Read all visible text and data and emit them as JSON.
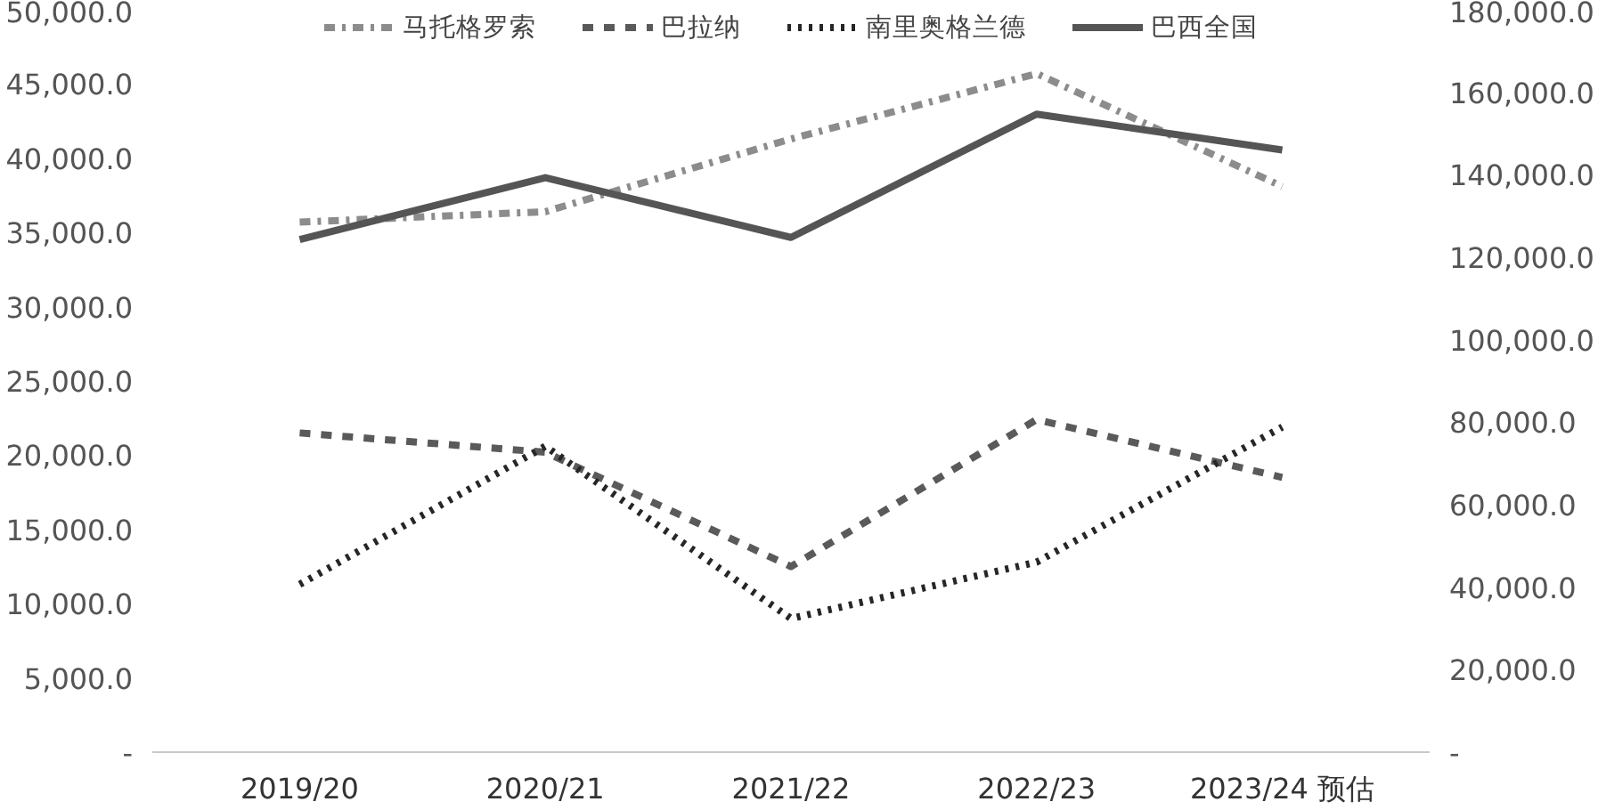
{
  "chart_data": {
    "type": "line",
    "categories": [
      "2019/20",
      "2020/21",
      "2021/22",
      "2022/23",
      "2023/24 预估"
    ],
    "series": [
      {
        "name": "马托格罗索",
        "color": "#8c8c8c",
        "line_style": "dashdot",
        "values": [
          35700,
          36400,
          41300,
          45700,
          38100
        ]
      },
      {
        "name": "巴拉纳",
        "color": "#5a5a5a",
        "line_style": "dashed",
        "values": [
          21500,
          20200,
          12500,
          22400,
          18500
        ]
      },
      {
        "name": "南里奥格兰德",
        "color": "#262626",
        "line_style": "dotted",
        "values": [
          11300,
          20600,
          9000,
          12800,
          21900
        ]
      },
      {
        "name": "巴西全国",
        "color": "#555555",
        "line_style": "solid",
        "axis": "y2",
        "values": [
          124300,
          139300,
          124800,
          154700,
          146000
        ]
      }
    ],
    "ylim": [
      0,
      50000
    ],
    "yticks": [
      {
        "value": 0,
        "label": "-"
      },
      {
        "value": 5000,
        "label": "5,000.0"
      },
      {
        "value": 10000,
        "label": "10,000.0"
      },
      {
        "value": 15000,
        "label": "15,000.0"
      },
      {
        "value": 20000,
        "label": "20,000.0"
      },
      {
        "value": 25000,
        "label": "25,000.0"
      },
      {
        "value": 30000,
        "label": "30,000.0"
      },
      {
        "value": 35000,
        "label": "35,000.0"
      },
      {
        "value": 40000,
        "label": "40,000.0"
      },
      {
        "value": 45000,
        "label": "45,000.0"
      },
      {
        "value": 50000,
        "label": "50,000.0"
      }
    ],
    "y2lim": [
      0,
      180000
    ],
    "y2ticks": [
      {
        "value": 0,
        "label": "-"
      },
      {
        "value": 20000,
        "label": "20,000.0"
      },
      {
        "value": 40000,
        "label": "40,000.0"
      },
      {
        "value": 60000,
        "label": "60,000.0"
      },
      {
        "value": 80000,
        "label": "80,000.0"
      },
      {
        "value": 100000,
        "label": "100,000.0"
      },
      {
        "value": 120000,
        "label": "120,000.0"
      },
      {
        "value": 140000,
        "label": "140,000.0"
      },
      {
        "value": 160000,
        "label": "160,000.0"
      },
      {
        "value": 180000,
        "label": "180,000.0"
      }
    ],
    "grid": false,
    "legend": "top",
    "marker": "none"
  }
}
